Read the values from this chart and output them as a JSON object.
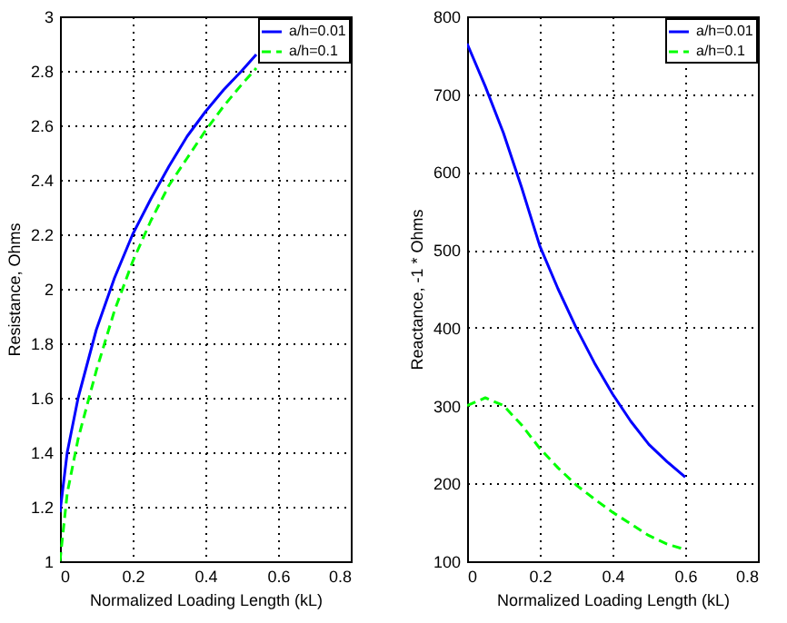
{
  "chart_data": [
    {
      "type": "line",
      "xlabel": "Normalized Loading Length (kL)",
      "ylabel": "Resistance, Ohms",
      "xlim": [
        0,
        0.8
      ],
      "xticks": [
        0,
        0.2,
        0.4,
        0.6,
        0.8
      ],
      "ylim": [
        1,
        3
      ],
      "yticks": [
        1,
        1.2,
        1.4,
        1.6,
        1.8,
        2,
        2.2,
        2.4,
        2.6,
        2.8,
        3
      ],
      "grid": true,
      "legend": "top right",
      "series": [
        {
          "name": "a/h=0.01",
          "color": "#0000ff",
          "line_style": "solid",
          "x": [
            0,
            0.02,
            0.05,
            0.1,
            0.15,
            0.2,
            0.25,
            0.3,
            0.35,
            0.4,
            0.45,
            0.5,
            0.54
          ],
          "values": [
            1.18,
            1.4,
            1.6,
            1.85,
            2.04,
            2.2,
            2.33,
            2.45,
            2.56,
            2.65,
            2.73,
            2.8,
            2.86
          ]
        },
        {
          "name": "a/h=0.1",
          "color": "#00ff00",
          "line_style": "dashed",
          "x": [
            0,
            0.02,
            0.05,
            0.1,
            0.15,
            0.2,
            0.25,
            0.3,
            0.35,
            0.4,
            0.45,
            0.5,
            0.54
          ],
          "values": [
            1.0,
            1.25,
            1.45,
            1.7,
            1.92,
            2.1,
            2.25,
            2.38,
            2.48,
            2.58,
            2.67,
            2.75,
            2.81
          ]
        }
      ]
    },
    {
      "type": "line",
      "xlabel": "Normalized Loading Length (kL)",
      "ylabel": "Reactance, -1 * Ohms",
      "xlim": [
        0,
        0.8
      ],
      "xticks": [
        0,
        0.2,
        0.4,
        0.6,
        0.8
      ],
      "ylim": [
        100,
        800
      ],
      "yticks": [
        100,
        200,
        300,
        400,
        500,
        600,
        700,
        800
      ],
      "grid": true,
      "legend": "top right",
      "series": [
        {
          "name": "a/h=0.01",
          "color": "#0000ff",
          "line_style": "solid",
          "x": [
            0,
            0.05,
            0.1,
            0.15,
            0.2,
            0.25,
            0.3,
            0.35,
            0.4,
            0.45,
            0.5,
            0.55,
            0.6
          ],
          "values": [
            765,
            710,
            650,
            580,
            505,
            450,
            400,
            355,
            315,
            280,
            250,
            228,
            208
          ]
        },
        {
          "name": "a/h=0.1",
          "color": "#00ff00",
          "line_style": "dashed",
          "x": [
            0,
            0.05,
            0.1,
            0.15,
            0.2,
            0.25,
            0.3,
            0.35,
            0.4,
            0.45,
            0.5,
            0.55,
            0.6
          ],
          "values": [
            300,
            310,
            300,
            275,
            245,
            220,
            198,
            180,
            163,
            148,
            133,
            122,
            115
          ]
        }
      ]
    }
  ]
}
